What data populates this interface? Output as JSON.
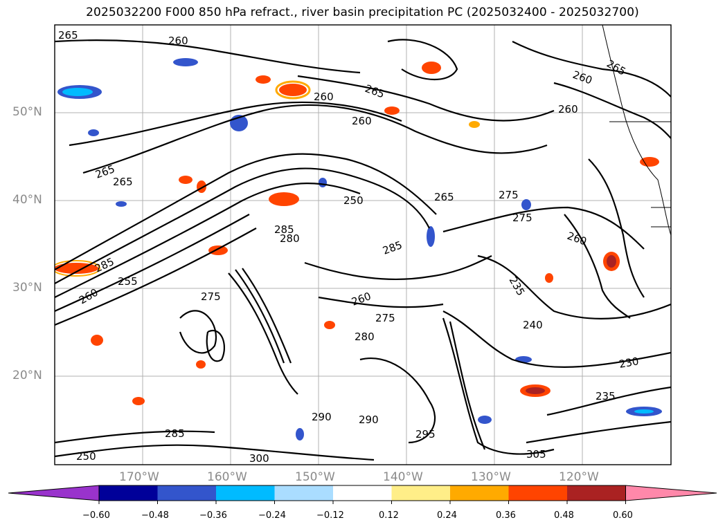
{
  "title": "2025032200 F000 850 hPa refract., river basin precipitation PC (2025032400 - 2025032700)",
  "lat_labels": [
    "50°N",
    "40°N",
    "30°N",
    "20°N"
  ],
  "lon_labels": [
    "170°W",
    "160°W",
    "150°W",
    "140°W",
    "130°W",
    "120°W"
  ],
  "contour_labels": [
    "265",
    "260",
    "265",
    "260",
    "260",
    "265",
    "265",
    "260",
    "260",
    "265",
    "275",
    "250",
    "265",
    "285",
    "280",
    "285",
    "275",
    "235",
    "240",
    "260",
    "275",
    "280",
    "230",
    "235",
    "290",
    "290",
    "295",
    "300",
    "305",
    "260",
    "285",
    "275",
    "255",
    "285",
    "250",
    "260"
  ],
  "colorbar": {
    "colors": [
      "#9933cc",
      "#000099",
      "#3355cc",
      "#00bbff",
      "#aaddff",
      "#ffffff",
      "#ffee88",
      "#ffaa00",
      "#ff4400",
      "#aa2222",
      "#ff88aa"
    ],
    "ticks": [
      "−0.60",
      "−0.48",
      "−0.36",
      "−0.24",
      "−0.12",
      "0.12",
      "0.24",
      "0.36",
      "0.48",
      "0.60"
    ]
  }
}
